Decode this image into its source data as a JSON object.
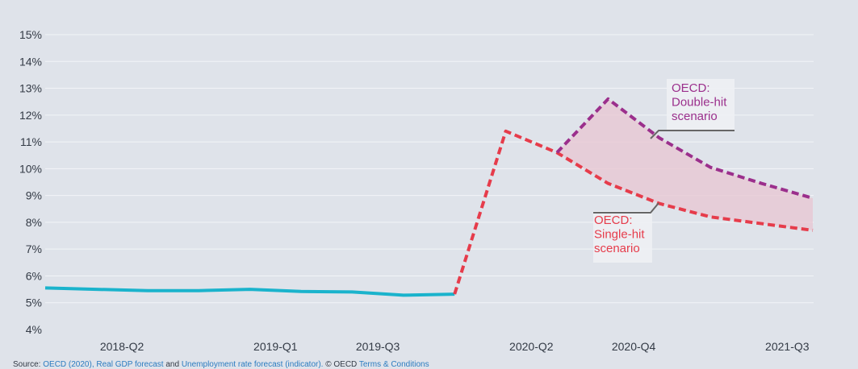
{
  "chart_data": {
    "type": "line",
    "title": "",
    "xlabel": "",
    "ylabel": "",
    "categories": [
      "2018-Q1",
      "2018-Q2",
      "2018-Q3",
      "2018-Q4",
      "2019-Q1",
      "2019-Q2",
      "2019-Q3",
      "2019-Q4",
      "2020-Q1",
      "2020-Q2",
      "2020-Q3",
      "2020-Q4",
      "2021-Q1",
      "2021-Q2",
      "2021-Q3",
      "2021-Q4"
    ],
    "x_tick_labels": [
      "2018-Q2",
      "2019-Q1",
      "2019-Q3",
      "2020-Q2",
      "2020-Q4",
      "2021-Q3"
    ],
    "y_ticks": [
      "4%",
      "5%",
      "6%",
      "7%",
      "8%",
      "9%",
      "10%",
      "11%",
      "12%",
      "13%",
      "14%",
      "15%"
    ],
    "ylim": [
      4,
      15
    ],
    "y_unit": "%",
    "grid": true,
    "series": [
      {
        "name": "",
        "color": "#1ab3cc",
        "style": "solid",
        "values": [
          5.55,
          5.5,
          5.45,
          5.45,
          5.5,
          5.42,
          5.4,
          5.28,
          5.32,
          null,
          null,
          null,
          null,
          null,
          null,
          null
        ]
      },
      {
        "name": "OECD: Single-hit scenario",
        "color": "#e63c4b",
        "style": "dashed",
        "values": [
          null,
          null,
          null,
          null,
          null,
          null,
          null,
          null,
          5.32,
          11.4,
          10.6,
          9.45,
          8.7,
          8.2,
          7.95,
          7.7
        ]
      },
      {
        "name": "OECD: Double-hit scenario",
        "color": "#9b2f8c",
        "style": "dashed",
        "values": [
          null,
          null,
          null,
          null,
          null,
          null,
          null,
          null,
          null,
          null,
          10.6,
          12.6,
          11.15,
          10.05,
          9.45,
          8.9
        ]
      }
    ],
    "annotations": [
      {
        "lines": [
          "OECD:",
          "Double-hit",
          "scenario"
        ],
        "color": "#9b2f8c"
      },
      {
        "lines": [
          "OECD:",
          "Single-hit",
          "scenario"
        ],
        "color": "#e63c4b"
      }
    ]
  },
  "source": {
    "prefix": "Source: ",
    "link1": "OECD (2020), Real GDP forecast",
    "mid": " and ",
    "link2": "Unemployment rate forecast (indicator).",
    "copyright": " © OECD ",
    "link3": "Terms & Conditions"
  }
}
